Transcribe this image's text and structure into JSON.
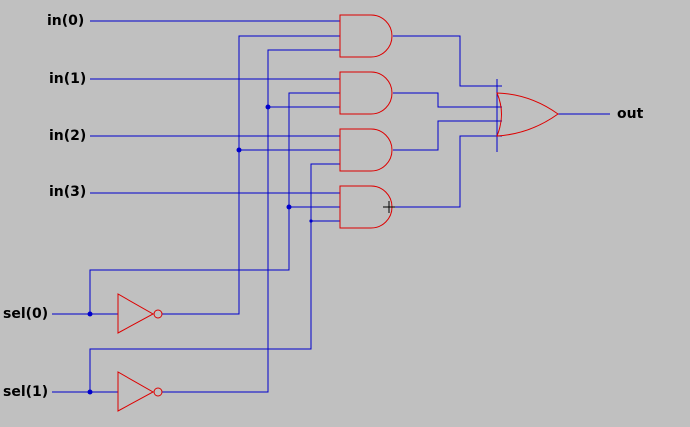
{
  "inputs": {
    "in0": "in(0)",
    "in1": "in(1)",
    "in2": "in(2)",
    "in3": "in(3)",
    "sel0": "sel(0)",
    "sel1": "sel(1)"
  },
  "output": {
    "out": "out"
  },
  "colors": {
    "background": "#c0c0c0",
    "wire": "#0000cc",
    "gate": "#dd0000",
    "label": "#000000"
  }
}
